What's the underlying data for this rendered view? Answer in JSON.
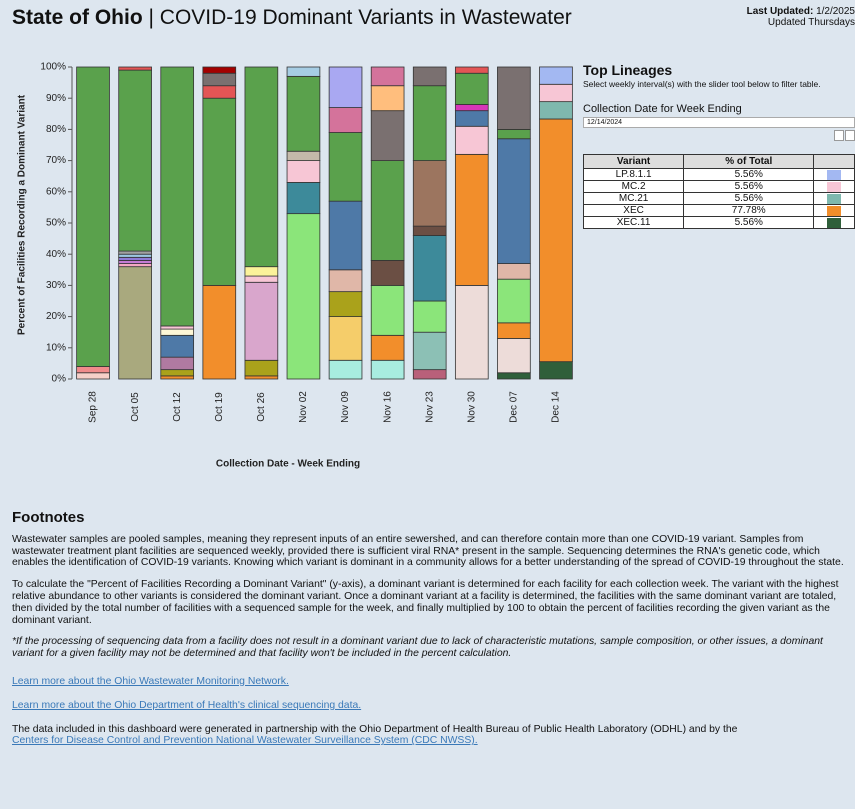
{
  "header": {
    "title_bold": "State of Ohio",
    "title": "| COVID-19 Dominant Variants in Wastewater",
    "updated_label": "Last Updated:",
    "updated_date": "1/2/2025",
    "updated_note": "Updated Thursdays"
  },
  "chart_data": {
    "type": "stacked_bar",
    "ylabel": "Percent of Facilities Recording a Dominant Variant",
    "xlabel": "Collection Date - Week Ending",
    "categories": [
      "Sep 28",
      "Oct 05",
      "Oct 12",
      "Oct 19",
      "Oct 26",
      "Nov 02",
      "Nov 09",
      "Nov 16",
      "Nov 23",
      "Nov 30",
      "Dec 07",
      "Dec 14"
    ],
    "ylim": [
      0,
      100
    ],
    "yticks": [
      {
        "value": 0,
        "label": "0%"
      },
      {
        "value": 10,
        "label": "10%"
      },
      {
        "value": 20,
        "label": "20%"
      },
      {
        "value": 30,
        "label": "30%"
      },
      {
        "value": 40,
        "label": "40%"
      },
      {
        "value": 50,
        "label": "50%"
      },
      {
        "value": 60,
        "label": "60%"
      },
      {
        "value": 70,
        "label": "70%"
      },
      {
        "value": 80,
        "label": "80%"
      },
      {
        "value": 90,
        "label": "90%"
      },
      {
        "value": 100,
        "label": "100%"
      }
    ],
    "bars": [
      {
        "segments": [
          {
            "color": "#f6cfc8",
            "value": 2
          },
          {
            "color": "#f08b8b",
            "value": 2
          },
          {
            "color": "#5aa14c",
            "value": 96
          }
        ]
      },
      {
        "segments": [
          {
            "color": "#a9a97e",
            "value": 36
          },
          {
            "color": "#f4a7c4",
            "value": 1
          },
          {
            "color": "#c57ad6",
            "value": 1
          },
          {
            "color": "#8e7ad6",
            "value": 1
          },
          {
            "color": "#9cc7e0",
            "value": 1
          },
          {
            "color": "#a0a0a0",
            "value": 1
          },
          {
            "color": "#5aa14c",
            "value": 58
          },
          {
            "color": "#e35555",
            "value": 1
          }
        ]
      },
      {
        "segments": [
          {
            "color": "#f28e2b",
            "value": 1
          },
          {
            "color": "#aaa21b",
            "value": 2
          },
          {
            "color": "#b07aa1",
            "value": 4
          },
          {
            "color": "#4e79a7",
            "value": 7
          },
          {
            "color": "#fdf7d6",
            "value": 2
          },
          {
            "color": "#f7c6d5",
            "value": 1
          },
          {
            "color": "#5aa14c",
            "value": 83
          }
        ]
      },
      {
        "segments": [
          {
            "color": "#f28e2b",
            "value": 30
          },
          {
            "color": "#5aa14c",
            "value": 60
          },
          {
            "color": "#e35555",
            "value": 4
          },
          {
            "color": "#7a7070",
            "value": 4
          },
          {
            "color": "#a30000",
            "value": 2
          }
        ]
      },
      {
        "segments": [
          {
            "color": "#f28e2b",
            "value": 1
          },
          {
            "color": "#aaa21b",
            "value": 5
          },
          {
            "color": "#d9a6cc",
            "value": 25
          },
          {
            "color": "#f7c6d5",
            "value": 2
          },
          {
            "color": "#fbf29a",
            "value": 3
          },
          {
            "color": "#5aa14c",
            "value": 64
          }
        ]
      },
      {
        "segments": [
          {
            "color": "#8be57a",
            "value": 53
          },
          {
            "color": "#3d8a9a",
            "value": 10
          },
          {
            "color": "#f7c6d5",
            "value": 7
          },
          {
            "color": "#c4b9aa",
            "value": 3
          },
          {
            "color": "#5aa14c",
            "value": 24
          },
          {
            "color": "#a6cde4",
            "value": 3
          }
        ]
      },
      {
        "segments": [
          {
            "color": "#a8ece0",
            "value": 6
          },
          {
            "color": "#f5cd6a",
            "value": 14
          },
          {
            "color": "#aaa21b",
            "value": 8
          },
          {
            "color": "#e0b7a8",
            "value": 7
          },
          {
            "color": "#4e79a7",
            "value": 22
          },
          {
            "color": "#5aa14c",
            "value": 22
          },
          {
            "color": "#d4739b",
            "value": 8
          },
          {
            "color": "#a9a8f2",
            "value": 13
          }
        ]
      },
      {
        "segments": [
          {
            "color": "#a8ece0",
            "value": 6
          },
          {
            "color": "#f28e2b",
            "value": 8
          },
          {
            "color": "#8be57a",
            "value": 16
          },
          {
            "color": "#6b4f44",
            "value": 8
          },
          {
            "color": "#5aa14c",
            "value": 32
          },
          {
            "color": "#7a7070",
            "value": 16
          },
          {
            "color": "#ffbe7d",
            "value": 8
          },
          {
            "color": "#d4739b",
            "value": 6
          }
        ]
      },
      {
        "segments": [
          {
            "color": "#b9607a",
            "value": 3
          },
          {
            "color": "#8cc0b5",
            "value": 12
          },
          {
            "color": "#8be57a",
            "value": 10
          },
          {
            "color": "#3d8a9a",
            "value": 21
          },
          {
            "color": "#6b4f44",
            "value": 3
          },
          {
            "color": "#9c755f",
            "value": 21
          },
          {
            "color": "#5aa14c",
            "value": 24
          },
          {
            "color": "#7a7070",
            "value": 6
          }
        ]
      },
      {
        "segments": [
          {
            "color": "#eddcd9",
            "value": 30
          },
          {
            "color": "#f28e2b",
            "value": 42
          },
          {
            "color": "#f7c6d5",
            "value": 9
          },
          {
            "color": "#4e79a7",
            "value": 5
          },
          {
            "color": "#d637b8",
            "value": 2
          },
          {
            "color": "#5aa14c",
            "value": 10
          },
          {
            "color": "#e35555",
            "value": 2
          }
        ]
      },
      {
        "segments": [
          {
            "color": "#2f5f3a",
            "value": 2
          },
          {
            "color": "#eddcd9",
            "value": 11
          },
          {
            "color": "#f28e2b",
            "value": 5
          },
          {
            "color": "#8be57a",
            "value": 14
          },
          {
            "color": "#e0b7a8",
            "value": 5
          },
          {
            "color": "#4e79a7",
            "value": 40
          },
          {
            "color": "#5aa14c",
            "value": 3
          },
          {
            "color": "#7a7070",
            "value": 20
          }
        ]
      },
      {
        "segments": [
          {
            "color": "#2f5f3a",
            "value": 5.56
          },
          {
            "color": "#f28e2b",
            "value": 77.78
          },
          {
            "color": "#7fb8ae",
            "value": 5.56
          },
          {
            "color": "#f7c6d5",
            "value": 5.56
          },
          {
            "color": "#a3b8f2",
            "value": 5.56
          }
        ]
      }
    ]
  },
  "panel": {
    "title": "Top Lineages",
    "subtitle": "Select weekly interval(s) with the slider tool below to filter table.",
    "date_label": "Collection Date for Week Ending",
    "date_value": "12/14/2024"
  },
  "table": {
    "headers": [
      "Variant",
      "% of Total"
    ],
    "rows": [
      {
        "variant": "LP.8.1.1",
        "pct": "5.56%",
        "color": "#a3b8f2"
      },
      {
        "variant": "MC.2",
        "pct": "5.56%",
        "color": "#f7c6d5"
      },
      {
        "variant": "MC.21",
        "pct": "5.56%",
        "color": "#7fb8ae"
      },
      {
        "variant": "XEC",
        "pct": "77.78%",
        "color": "#f28e2b"
      },
      {
        "variant": "XEC.11",
        "pct": "5.56%",
        "color": "#2f5f3a"
      }
    ]
  },
  "footnotes": {
    "title": "Footnotes",
    "paragraphs": [
      "Wastewater samples are pooled samples, meaning they represent inputs of an entire sewershed, and can therefore contain more than one COVID-19 variant. Samples from wastewater treatment plant facilities are sequenced weekly, provided there is sufficient viral RNA* present in the sample. Sequencing determines the RNA's genetic code, which enables the identification of COVID-19 variants. Knowing which variant is dominant in a community allows for a better understanding of the spread of COVID-19 throughout the state.",
      "To calculate the \"Percent of Facilities Recording a Dominant Variant\" (y-axis), a dominant variant is determined for each facility for each collection week. The variant with the highest relative abundance to other variants is considered the dominant variant. Once a dominant variant at a facility is determined, the facilities with the same dominant variant are totaled, then divided by the total number of facilities with a sequenced sample for the week, and finally multiplied by 100 to obtain the percent of facilities recording the given variant as the dominant variant."
    ],
    "note": "*If the processing of sequencing data from a facility does not result in a dominant variant due to lack of characteristic mutations, sample composition, or other issues, a dominant variant for a given facility may not be determined and that facility won't be included in the percent calculation.",
    "links": [
      "Learn more about the Ohio Wastewater Monitoring Network.",
      "Learn more about the Ohio Department of Health's clinical sequencing data."
    ],
    "credit": "The data included in this dashboard were generated in partnership with the Ohio Department of Health Bureau of Public Health Laboratory (ODHL) and by the",
    "credit_link": "Centers for Disease Control and Prevention National Wastewater Surveillance System (CDC NWSS)."
  }
}
